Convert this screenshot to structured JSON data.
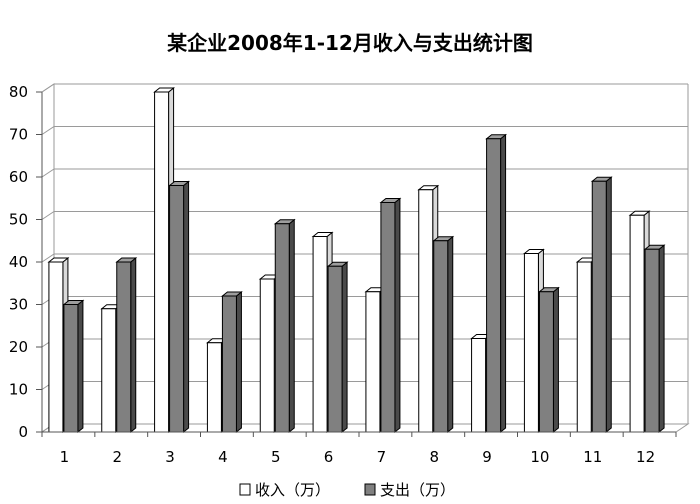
{
  "chart_data": {
    "type": "bar",
    "title": "某企业2008年1-12月收入与支出统计图",
    "xlabel": "",
    "ylabel": "",
    "categories": [
      "1",
      "2",
      "3",
      "4",
      "5",
      "6",
      "7",
      "8",
      "9",
      "10",
      "11",
      "12"
    ],
    "series": [
      {
        "name": "收入（万）",
        "color": "#ffffff",
        "values": [
          40,
          29,
          80,
          21,
          36,
          46,
          33,
          57,
          22,
          42,
          40,
          51
        ]
      },
      {
        "name": "支出（万）",
        "color": "#808080",
        "values": [
          30,
          40,
          58,
          32,
          49,
          39,
          54,
          45,
          69,
          33,
          59,
          43
        ]
      }
    ],
    "ylim": [
      0,
      80
    ],
    "yticks": [
      0,
      10,
      20,
      30,
      40,
      50,
      60,
      70,
      80
    ],
    "grid": true,
    "legend_position": "bottom",
    "style": "3d-clustered-column"
  }
}
